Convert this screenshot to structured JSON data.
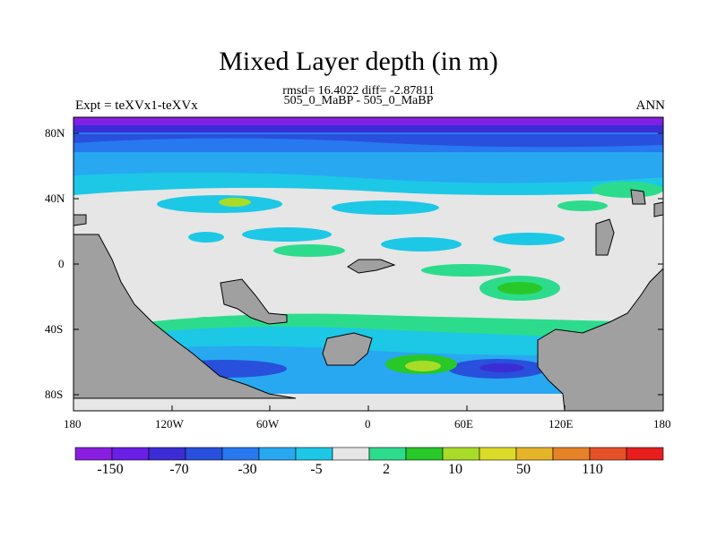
{
  "figure": {
    "title": "Mixed Layer depth (in m)",
    "stats_line": "rmsd= 16.4022 diff= -2.87811",
    "run_line": "505_0_MaBP - 505_0_MaBP",
    "experiment": "Expt = teXVx1-teXVx",
    "season": "ANN"
  },
  "axes": {
    "lat_ticks": [
      "80N",
      "40N",
      "0",
      "40S",
      "80S"
    ],
    "lon_ticks": [
      "180",
      "120W",
      "60W",
      "0",
      "60E",
      "120E",
      "180"
    ]
  },
  "colorbar": {
    "labels": [
      "-150",
      "-70",
      "-30",
      "-5",
      "2",
      "10",
      "50",
      "110"
    ],
    "colors": [
      "#8a1ee0",
      "#6a1ee6",
      "#3c2cd6",
      "#2850dc",
      "#2878f0",
      "#28a8f0",
      "#1cc8e6",
      "#e6e6e6",
      "#2cdc8c",
      "#28c828",
      "#a8dc28",
      "#dcdc28",
      "#e6b428",
      "#e68228",
      "#e65028",
      "#e61e1e"
    ]
  },
  "map_colors": {
    "land": "#a0a0a0",
    "neutral": "#e6e6e6"
  }
}
